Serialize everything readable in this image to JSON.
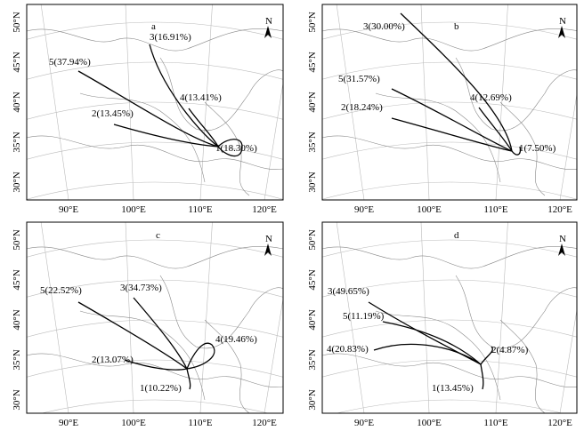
{
  "north_label": "N",
  "longitude_labels": [
    "90°E",
    "100°E",
    "110°E",
    "120°E"
  ],
  "latitude_labels": [
    "50°N",
    "45°N",
    "40°N",
    "35°N",
    "30°N"
  ],
  "panels": [
    {
      "letter": "a",
      "trajectories": [
        {
          "label": "3(16.91%)"
        },
        {
          "label": "5(37.94%)"
        },
        {
          "label": "4(13.41%)"
        },
        {
          "label": "2(13.45%)"
        },
        {
          "label": "1(18.30%)"
        }
      ]
    },
    {
      "letter": "b",
      "trajectories": [
        {
          "label": "3(30.00%)"
        },
        {
          "label": "5(31.57%)"
        },
        {
          "label": "4(12.69%)"
        },
        {
          "label": "2(18.24%)"
        },
        {
          "label": "1(7.50%)"
        }
      ]
    },
    {
      "letter": "c",
      "trajectories": [
        {
          "label": "5(22.52%)"
        },
        {
          "label": "3(34.73%)"
        },
        {
          "label": "4(19.46%)"
        },
        {
          "label": "2(13.07%)"
        },
        {
          "label": "1(10.22%)"
        }
      ]
    },
    {
      "letter": "d",
      "trajectories": [
        {
          "label": "3(49.65%)"
        },
        {
          "label": "5(11.19%)"
        },
        {
          "label": "4(20.83%)"
        },
        {
          "label": "2(4.87%)"
        },
        {
          "label": "1(13.45%)"
        }
      ]
    }
  ]
}
